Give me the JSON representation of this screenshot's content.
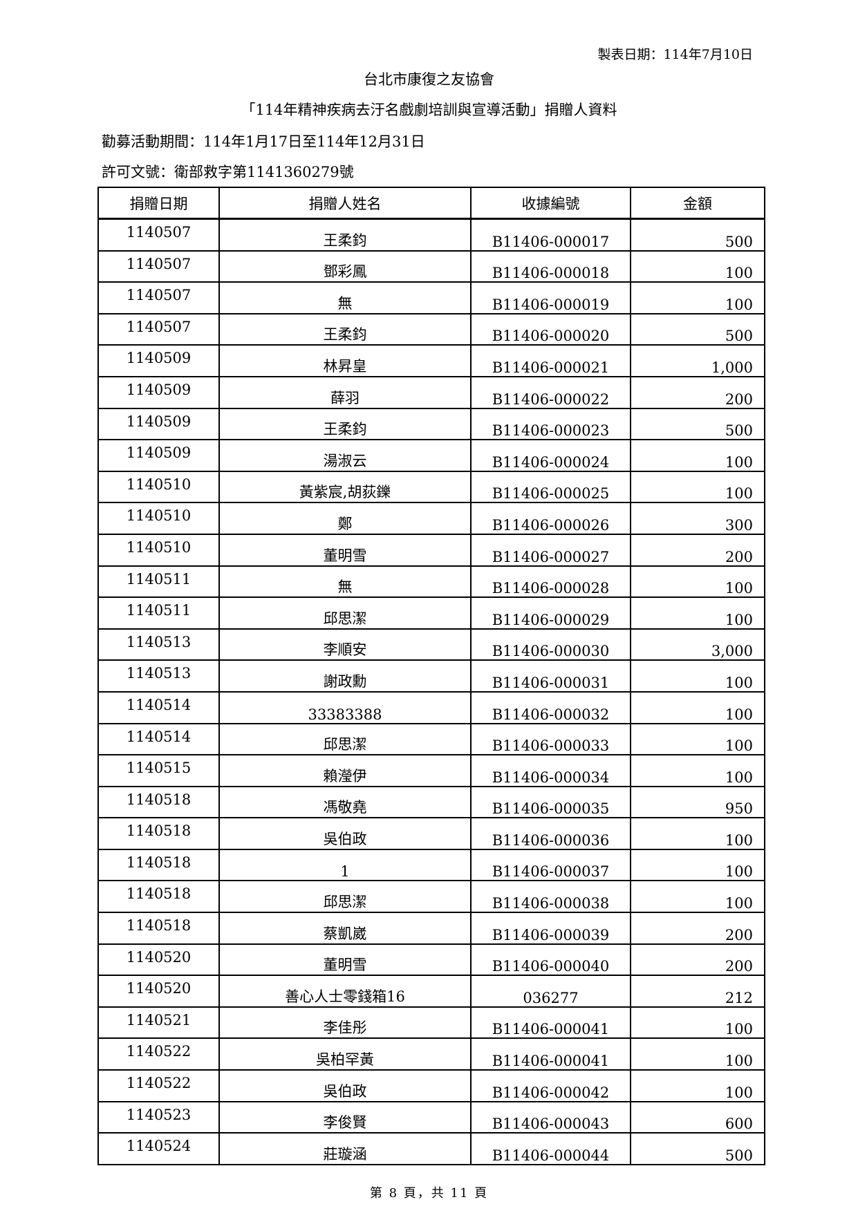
{
  "header": {
    "made_date": "製表日期：114年7月10日",
    "organization": "台北市康復之友協會",
    "subtitle": "「114年精神疾病去汙名戲劇培訓與宣導活動」捐贈人資料",
    "period": "勸募活動期間：114年1月17日至114年12月31日",
    "permit": "許可文號：衛部救字第1141360279號"
  },
  "table": {
    "columns": [
      "捐贈日期",
      "捐贈人姓名",
      "收據編號",
      "金額"
    ],
    "rows": [
      [
        "1140507",
        "王柔鈞",
        "B11406-000017",
        "500"
      ],
      [
        "1140507",
        "鄧彩鳳",
        "B11406-000018",
        "100"
      ],
      [
        "1140507",
        "無",
        "B11406-000019",
        "100"
      ],
      [
        "1140507",
        "王柔鈞",
        "B11406-000020",
        "500"
      ],
      [
        "1140509",
        "林昇皇",
        "B11406-000021",
        "1,000"
      ],
      [
        "1140509",
        "薛羽",
        "B11406-000022",
        "200"
      ],
      [
        "1140509",
        "王柔鈞",
        "B11406-000023",
        "500"
      ],
      [
        "1140509",
        "湯淑云",
        "B11406-000024",
        "100"
      ],
      [
        "1140510",
        "黃紫宸,胡荻鑠",
        "B11406-000025",
        "100"
      ],
      [
        "1140510",
        "鄭",
        "B11406-000026",
        "300"
      ],
      [
        "1140510",
        "董明雪",
        "B11406-000027",
        "200"
      ],
      [
        "1140511",
        "無",
        "B11406-000028",
        "100"
      ],
      [
        "1140511",
        "邱思潔",
        "B11406-000029",
        "100"
      ],
      [
        "1140513",
        "李順安",
        "B11406-000030",
        "3,000"
      ],
      [
        "1140513",
        "謝政勳",
        "B11406-000031",
        "100"
      ],
      [
        "1140514",
        "33383388",
        "B11406-000032",
        "100"
      ],
      [
        "1140514",
        "邱思潔",
        "B11406-000033",
        "100"
      ],
      [
        "1140515",
        "賴瀅伊",
        "B11406-000034",
        "100"
      ],
      [
        "1140518",
        "馮敬堯",
        "B11406-000035",
        "950"
      ],
      [
        "1140518",
        "吳伯政",
        "B11406-000036",
        "100"
      ],
      [
        "1140518",
        "1",
        "B11406-000037",
        "100"
      ],
      [
        "1140518",
        "邱思潔",
        "B11406-000038",
        "100"
      ],
      [
        "1140518",
        "蔡凱崴",
        "B11406-000039",
        "200"
      ],
      [
        "1140520",
        "董明雪",
        "B11406-000040",
        "200"
      ],
      [
        "1140520",
        "善心人士零錢箱16",
        "036277",
        "212"
      ],
      [
        "1140521",
        "李佳彤",
        "B11406-000041",
        "100"
      ],
      [
        "1140522",
        "吳柏罕黃",
        "B11406-000041",
        "100"
      ],
      [
        "1140522",
        "吳伯政",
        "B11406-000042",
        "100"
      ],
      [
        "1140523",
        "李俊賢",
        "B11406-000043",
        "600"
      ],
      [
        "1140524",
        "莊璇涵",
        "B11406-000044",
        "500"
      ]
    ]
  },
  "footer": {
    "page_label": "第 8 頁，共 11 頁"
  }
}
